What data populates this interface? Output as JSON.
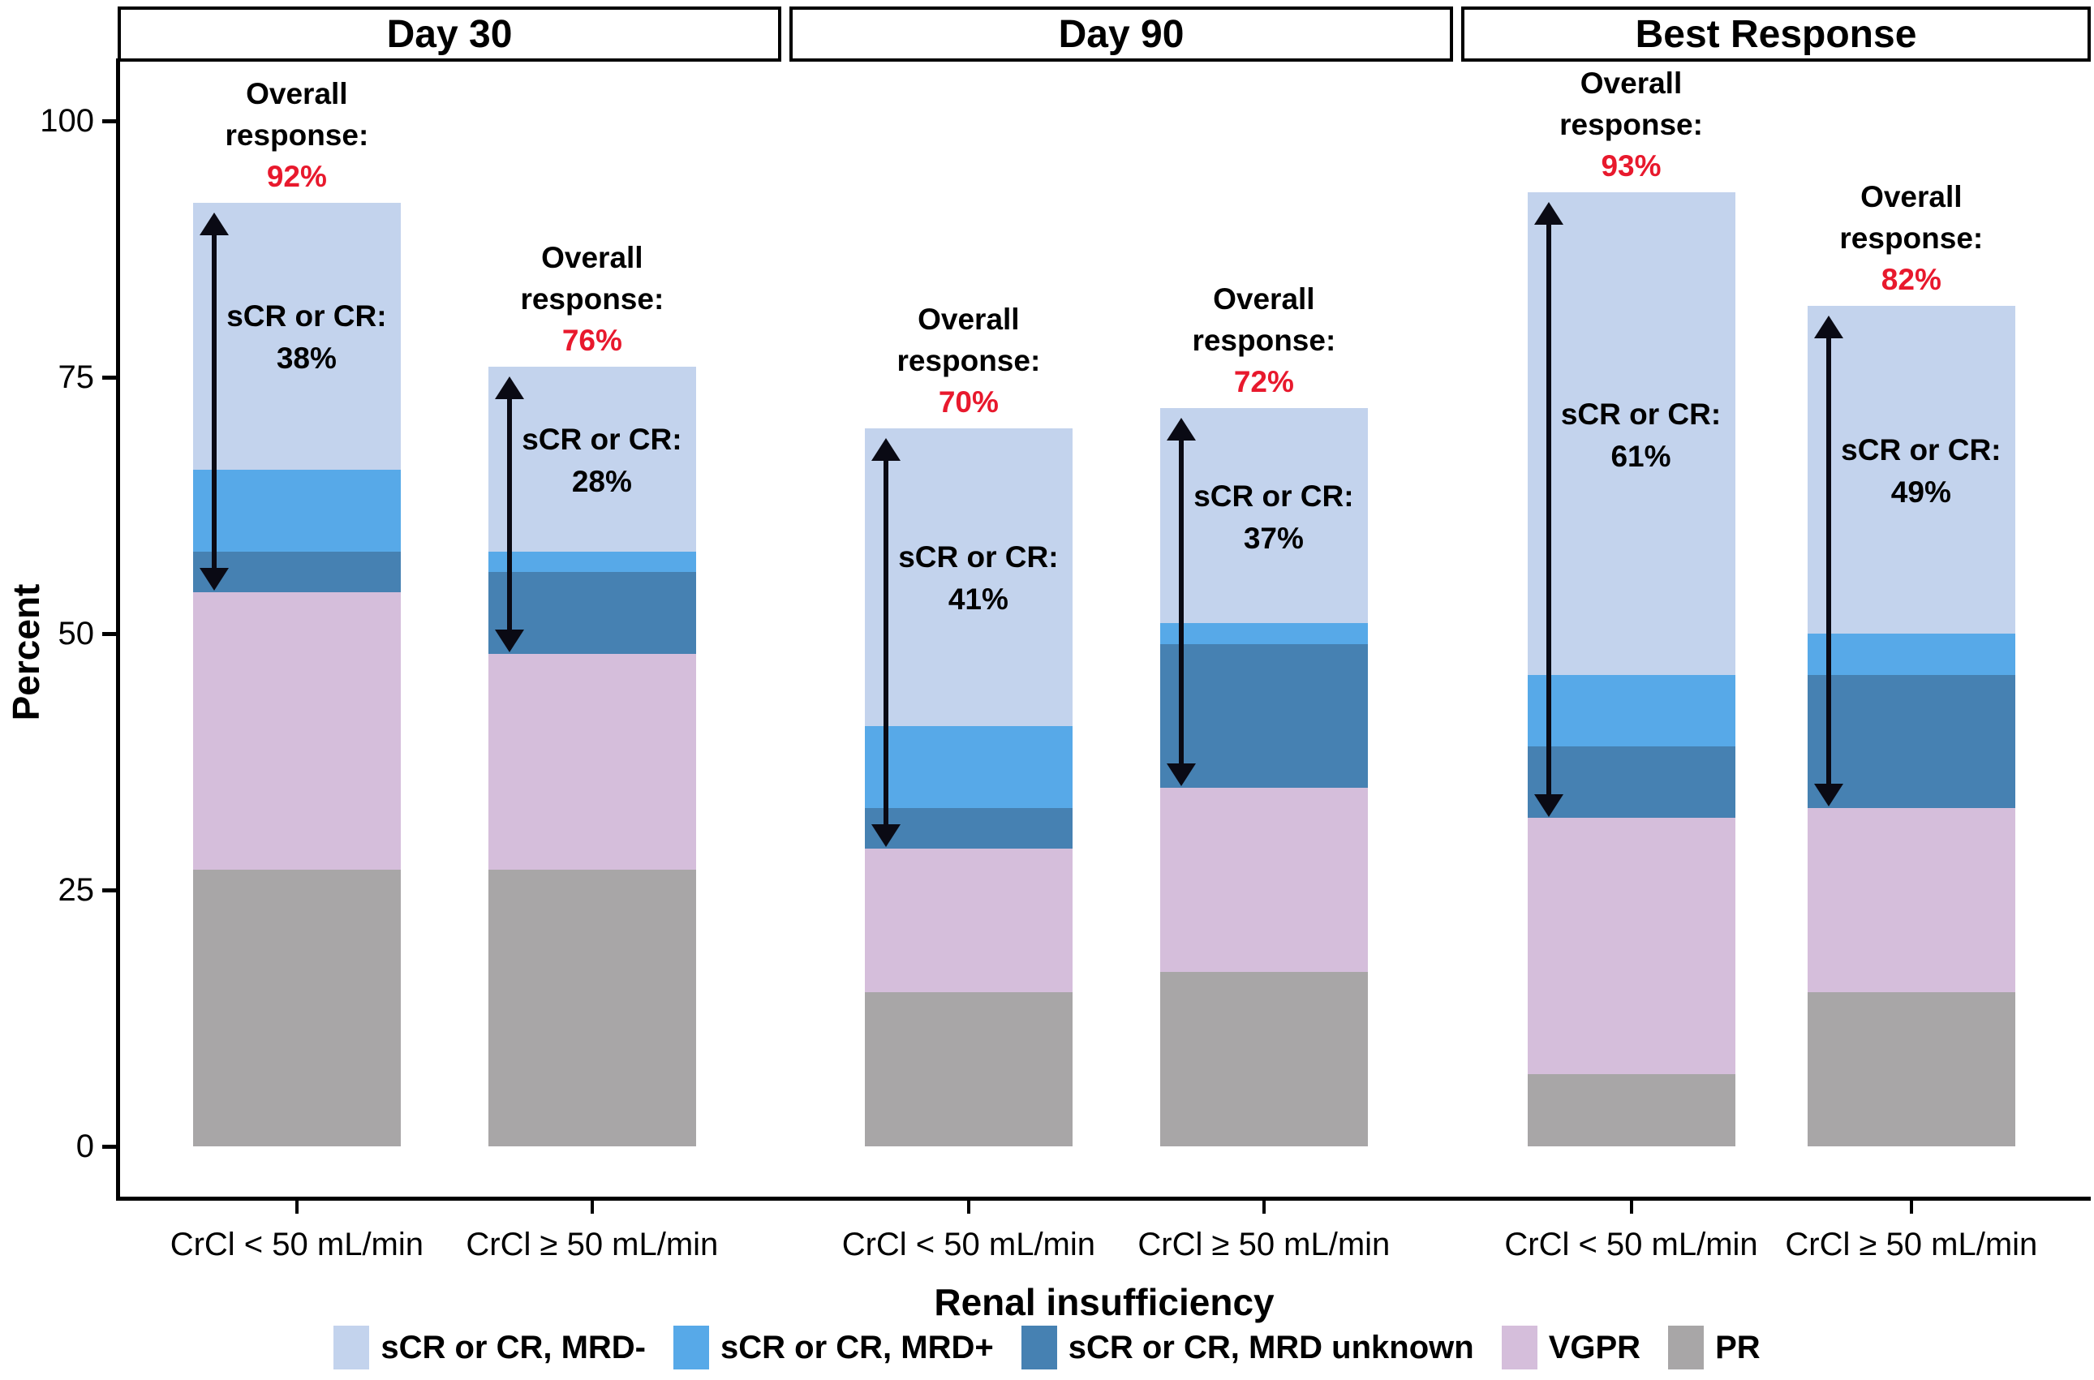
{
  "chart_data": {
    "type": "bar",
    "stacked": true,
    "title": "",
    "ylabel": "Percent",
    "xlabel": "Renal insufficiency",
    "ylim": [
      0,
      100
    ],
    "yticks": [
      0,
      25,
      50,
      75,
      100
    ],
    "grid": false,
    "legend_position": "bottom",
    "panel_titles": [
      "Day 30",
      "Day 90",
      "Best Response"
    ],
    "categories": [
      "CrCl < 50 mL/min",
      "CrCl ≥ 50 mL/min"
    ],
    "stack_order": [
      "PR",
      "VGPR",
      "sCR or CR, MRD unknown",
      "sCR or CR, MRD+",
      "sCR or CR, MRD-"
    ],
    "legend": [
      {
        "label": "sCR or CR, MRD-",
        "color": "#c3d3ed"
      },
      {
        "label": "sCR or CR, MRD+",
        "color": "#57a9e8"
      },
      {
        "label": "sCR or CR, MRD unknown",
        "color": "#4681b2"
      },
      {
        "label": "VGPR",
        "color": "#d5bedb"
      },
      {
        "label": "PR",
        "color": "#a8a6a7"
      }
    ],
    "annotation_labels": {
      "overall": "Overall response:",
      "scr": "sCR or CR:"
    },
    "accent_red": "#e8192d",
    "bars": [
      {
        "panel": "Day 30",
        "category": "CrCl < 50 mL/min",
        "overall_response": "92%",
        "scr_or_cr": "38%",
        "segments": {
          "PR": 27,
          "VGPR": 27,
          "sCR or CR, MRD unknown": 4,
          "sCR or CR, MRD+": 8,
          "sCR or CR, MRD-": 26
        }
      },
      {
        "panel": "Day 30",
        "category": "CrCl ≥ 50 mL/min",
        "overall_response": "76%",
        "scr_or_cr": "28%",
        "segments": {
          "PR": 27,
          "VGPR": 21,
          "sCR or CR, MRD unknown": 8,
          "sCR or CR, MRD+": 2,
          "sCR or CR, MRD-": 18
        }
      },
      {
        "panel": "Day 90",
        "category": "CrCl < 50 mL/min",
        "overall_response": "70%",
        "scr_or_cr": "41%",
        "segments": {
          "PR": 15,
          "VGPR": 14,
          "sCR or CR, MRD unknown": 4,
          "sCR or CR, MRD+": 8,
          "sCR or CR, MRD-": 29
        }
      },
      {
        "panel": "Day 90",
        "category": "CrCl ≥ 50 mL/min",
        "overall_response": "72%",
        "scr_or_cr": "37%",
        "segments": {
          "PR": 17,
          "VGPR": 18,
          "sCR or CR, MRD unknown": 14,
          "sCR or CR, MRD+": 2,
          "sCR or CR, MRD-": 21
        }
      },
      {
        "panel": "Best Response",
        "category": "CrCl < 50 mL/min",
        "overall_response": "93%",
        "scr_or_cr": "61%",
        "segments": {
          "PR": 7,
          "VGPR": 25,
          "sCR or CR, MRD unknown": 7,
          "sCR or CR, MRD+": 7,
          "sCR or CR, MRD-": 47
        }
      },
      {
        "panel": "Best Response",
        "category": "CrCl ≥ 50 mL/min",
        "overall_response": "82%",
        "scr_or_cr": "49%",
        "segments": {
          "PR": 15,
          "VGPR": 18,
          "sCR or CR, MRD unknown": 13,
          "sCR or CR, MRD+": 4,
          "sCR or CR, MRD-": 32
        }
      }
    ]
  }
}
